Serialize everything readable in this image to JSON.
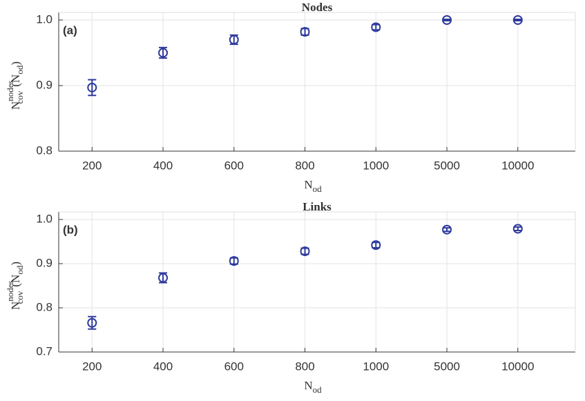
{
  "chart_data": [
    {
      "type": "scatter",
      "title": "Nodes",
      "annotation": "(a)",
      "xlabel": {
        "base": "N",
        "sub": "od"
      },
      "ylabel": {
        "base": "N",
        "sup": "nodes",
        "sub": "cov",
        "tail": "(N",
        "tail_sub": "od",
        "close": ")"
      },
      "categories": [
        "200",
        "400",
        "600",
        "800",
        "1000",
        "5000",
        "10000"
      ],
      "series": [
        {
          "color": "#2d3a9c",
          "values": [
            0.897,
            0.95,
            0.97,
            0.982,
            0.989,
            1.0,
            1.0
          ],
          "errors": [
            0.012,
            0.008,
            0.007,
            0.005,
            0.004,
            0.001,
            0.001
          ]
        }
      ],
      "ylim": [
        0.8,
        1.0
      ],
      "yticks": [
        0.8,
        0.9,
        {
          "value": 1.0,
          "label": "1.0"
        }
      ],
      "grid": true
    },
    {
      "type": "scatter",
      "title": "Links",
      "annotation": "(b)",
      "xlabel": {
        "base": "N",
        "sub": "od"
      },
      "ylabel": {
        "base": "N",
        "sup": "nodes",
        "sub": "cov",
        "tail": "(N",
        "tail_sub": "od",
        "close": ")"
      },
      "categories": [
        "200",
        "400",
        "600",
        "800",
        "1000",
        "5000",
        "10000"
      ],
      "series": [
        {
          "color": "#2d3a9c",
          "values": [
            0.766,
            0.868,
            0.906,
            0.928,
            0.942,
            0.977,
            0.979
          ],
          "errors": [
            0.014,
            0.011,
            0.007,
            0.007,
            0.006,
            0.004,
            0.004
          ]
        }
      ],
      "ylim": [
        0.7,
        1.0
      ],
      "yticks": [
        0.7,
        0.8,
        0.9,
        {
          "value": 1.0,
          "label": "1.0"
        }
      ],
      "grid": true
    }
  ]
}
